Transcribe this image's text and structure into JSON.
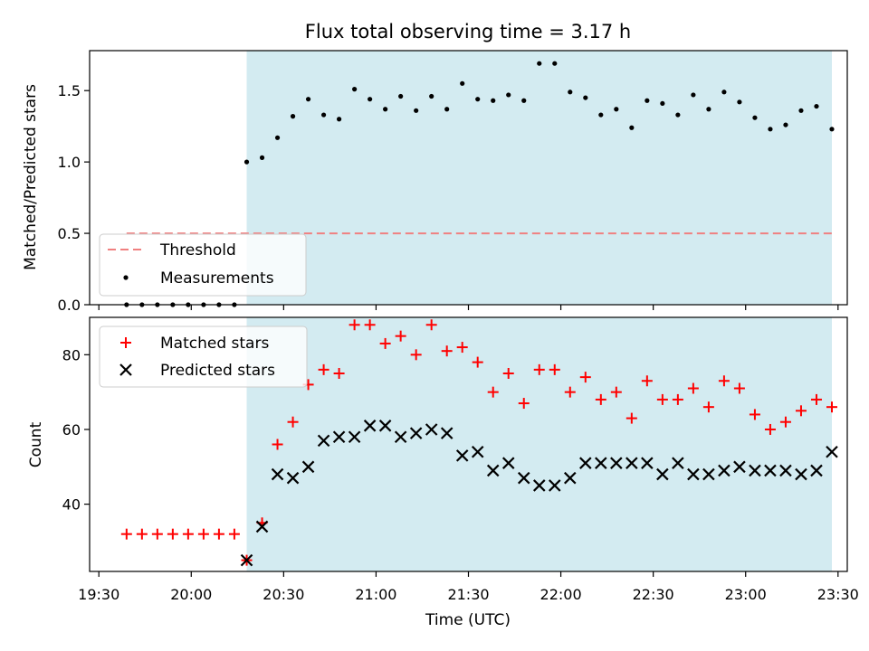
{
  "chart_data": [
    {
      "type": "scatter",
      "title": "Flux total observing time = 3.17 h",
      "ylabel": "Matched/Predicted stars",
      "xlabel": "",
      "xlim": [
        "19:27",
        "23:33"
      ],
      "ylim": [
        0,
        1.78
      ],
      "yticks": [
        "0.0",
        "0.5",
        "1.0",
        "1.5"
      ],
      "observing_window": [
        "20:18",
        "23:28"
      ],
      "threshold": {
        "label": "Threshold",
        "value": 0.5,
        "x_range": [
          "19:39",
          "23:28"
        ],
        "color": "#f08080"
      },
      "series": [
        {
          "name": "Measurements",
          "color": "#000000",
          "x": [
            "19:39",
            "19:44",
            "19:49",
            "19:54",
            "19:59",
            "20:04",
            "20:09",
            "20:14",
            "20:18",
            "20:23",
            "20:28",
            "20:33",
            "20:38",
            "20:43",
            "20:48",
            "20:53",
            "20:58",
            "21:03",
            "21:08",
            "21:13",
            "21:18",
            "21:23",
            "21:28",
            "21:33",
            "21:38",
            "21:43",
            "21:48",
            "21:53",
            "21:58",
            "22:03",
            "22:08",
            "22:13",
            "22:18",
            "22:23",
            "22:28",
            "22:33",
            "22:38",
            "22:43",
            "22:48",
            "22:53",
            "22:58",
            "23:03",
            "23:08",
            "23:13",
            "23:18",
            "23:23",
            "23:28"
          ],
          "y": [
            0,
            0,
            0,
            0,
            0,
            0,
            0,
            0,
            1.0,
            1.03,
            1.17,
            1.32,
            1.44,
            1.33,
            1.3,
            1.51,
            1.44,
            1.37,
            1.46,
            1.36,
            1.46,
            1.37,
            1.55,
            1.44,
            1.43,
            1.47,
            1.43,
            1.69,
            1.69,
            1.49,
            1.45,
            1.33,
            1.37,
            1.24,
            1.43,
            1.41,
            1.33,
            1.47,
            1.37,
            1.49,
            1.42,
            1.31,
            1.23,
            1.26,
            1.36,
            1.39,
            1.23
          ]
        }
      ],
      "legend": {
        "position": "lower-left",
        "entries": [
          "Threshold",
          "Measurements"
        ]
      }
    },
    {
      "type": "scatter",
      "title": "",
      "ylabel": "Count",
      "xlabel": "Time (UTC)",
      "xlim": [
        "19:27",
        "23:33"
      ],
      "ylim": [
        22,
        90
      ],
      "yticks": [
        "40",
        "60",
        "80"
      ],
      "xticks": [
        "19:30",
        "20:00",
        "20:30",
        "21:00",
        "21:30",
        "22:00",
        "22:30",
        "23:00",
        "23:30"
      ],
      "observing_window": [
        "20:18",
        "23:28"
      ],
      "series": [
        {
          "name": "Matched stars",
          "marker": "plus",
          "color": "#ff0000",
          "x": [
            "19:39",
            "19:44",
            "19:49",
            "19:54",
            "19:59",
            "20:04",
            "20:09",
            "20:14",
            "20:18",
            "20:23",
            "20:28",
            "20:33",
            "20:38",
            "20:43",
            "20:48",
            "20:53",
            "20:58",
            "21:03",
            "21:08",
            "21:13",
            "21:18",
            "21:23",
            "21:28",
            "21:33",
            "21:38",
            "21:43",
            "21:48",
            "21:53",
            "21:58",
            "22:03",
            "22:08",
            "22:13",
            "22:18",
            "22:23",
            "22:28",
            "22:33",
            "22:38",
            "22:43",
            "22:48",
            "22:53",
            "22:58",
            "23:03",
            "23:08",
            "23:13",
            "23:18",
            "23:23",
            "23:28"
          ],
          "y": [
            32,
            32,
            32,
            32,
            32,
            32,
            32,
            32,
            25,
            35,
            56,
            62,
            72,
            76,
            75,
            88,
            88,
            83,
            85,
            80,
            88,
            81,
            82,
            78,
            70,
            75,
            67,
            76,
            76,
            70,
            74,
            68,
            70,
            63,
            73,
            68,
            68,
            71,
            66,
            73,
            71,
            64,
            60,
            62,
            65,
            68,
            66
          ]
        },
        {
          "name": "Predicted stars",
          "marker": "x",
          "color": "#000000",
          "x": [
            "20:18",
            "20:23",
            "20:28",
            "20:33",
            "20:38",
            "20:43",
            "20:48",
            "20:53",
            "20:58",
            "21:03",
            "21:08",
            "21:13",
            "21:18",
            "21:23",
            "21:28",
            "21:33",
            "21:38",
            "21:43",
            "21:48",
            "21:53",
            "21:58",
            "22:03",
            "22:08",
            "22:13",
            "22:18",
            "22:23",
            "22:28",
            "22:33",
            "22:38",
            "22:43",
            "22:48",
            "22:53",
            "22:58",
            "23:03",
            "23:08",
            "23:13",
            "23:18",
            "23:23",
            "23:28"
          ],
          "y": [
            25,
            34,
            48,
            47,
            50,
            57,
            58,
            58,
            61,
            61,
            58,
            59,
            60,
            59,
            53,
            54,
            49,
            51,
            47,
            45,
            45,
            47,
            51,
            51,
            51,
            51,
            51,
            48,
            51,
            48,
            48,
            49,
            50,
            49,
            49,
            49,
            48,
            49,
            54
          ]
        }
      ],
      "legend": {
        "position": "upper-left",
        "entries": [
          "Matched stars",
          "Predicted stars"
        ]
      }
    }
  ],
  "colors": {
    "observing_shade": "#d3ebf1",
    "threshold": "#f08080",
    "matched": "#ff0000",
    "predicted": "#000000"
  }
}
